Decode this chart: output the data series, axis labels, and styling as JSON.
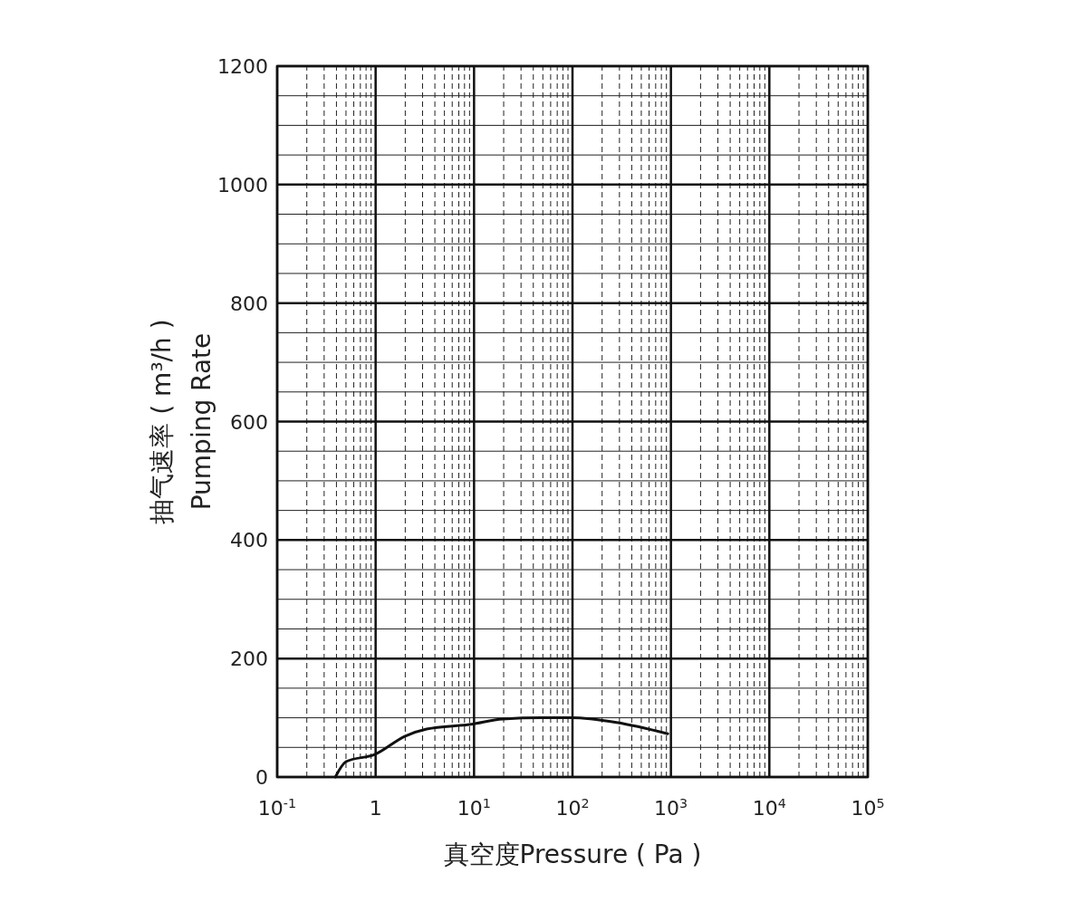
{
  "chart_data": {
    "type": "line",
    "xlabel": "真空度Pressure ( Pa )",
    "ylabel": "抽气速率 ( m³/h )\nPumping Rate",
    "log": "x",
    "xlim": [
      0.1,
      100000
    ],
    "xticks": [
      {
        "value": 0.1,
        "label": "10$^{-1}$"
      },
      1,
      {
        "value": 10,
        "label": "10$^{1}$"
      },
      {
        "value": 100,
        "label": "10$^{2}$"
      },
      {
        "value": 1000,
        "label": "10$^{3}$"
      },
      {
        "value": 10000,
        "label": "10$^{4}$"
      },
      {
        "value": 100000,
        "label": "10$^{5}$"
      }
    ],
    "ylim": [
      0,
      1200
    ],
    "yticks": [
      0,
      200,
      400,
      600,
      800,
      1000,
      1200
    ],
    "grid": true,
    "marker": "none",
    "line_style": "solid",
    "series": [
      {
        "color": "#111111",
        "x": [
          0.39,
          0.5,
          0.98,
          2,
          3.3,
          9.3,
          19.5,
          48.5,
          98,
          280,
          930
        ],
        "values": [
          0,
          26,
          38,
          69,
          81,
          89,
          98,
          100,
          100,
          92,
          73
        ]
      }
    ]
  }
}
